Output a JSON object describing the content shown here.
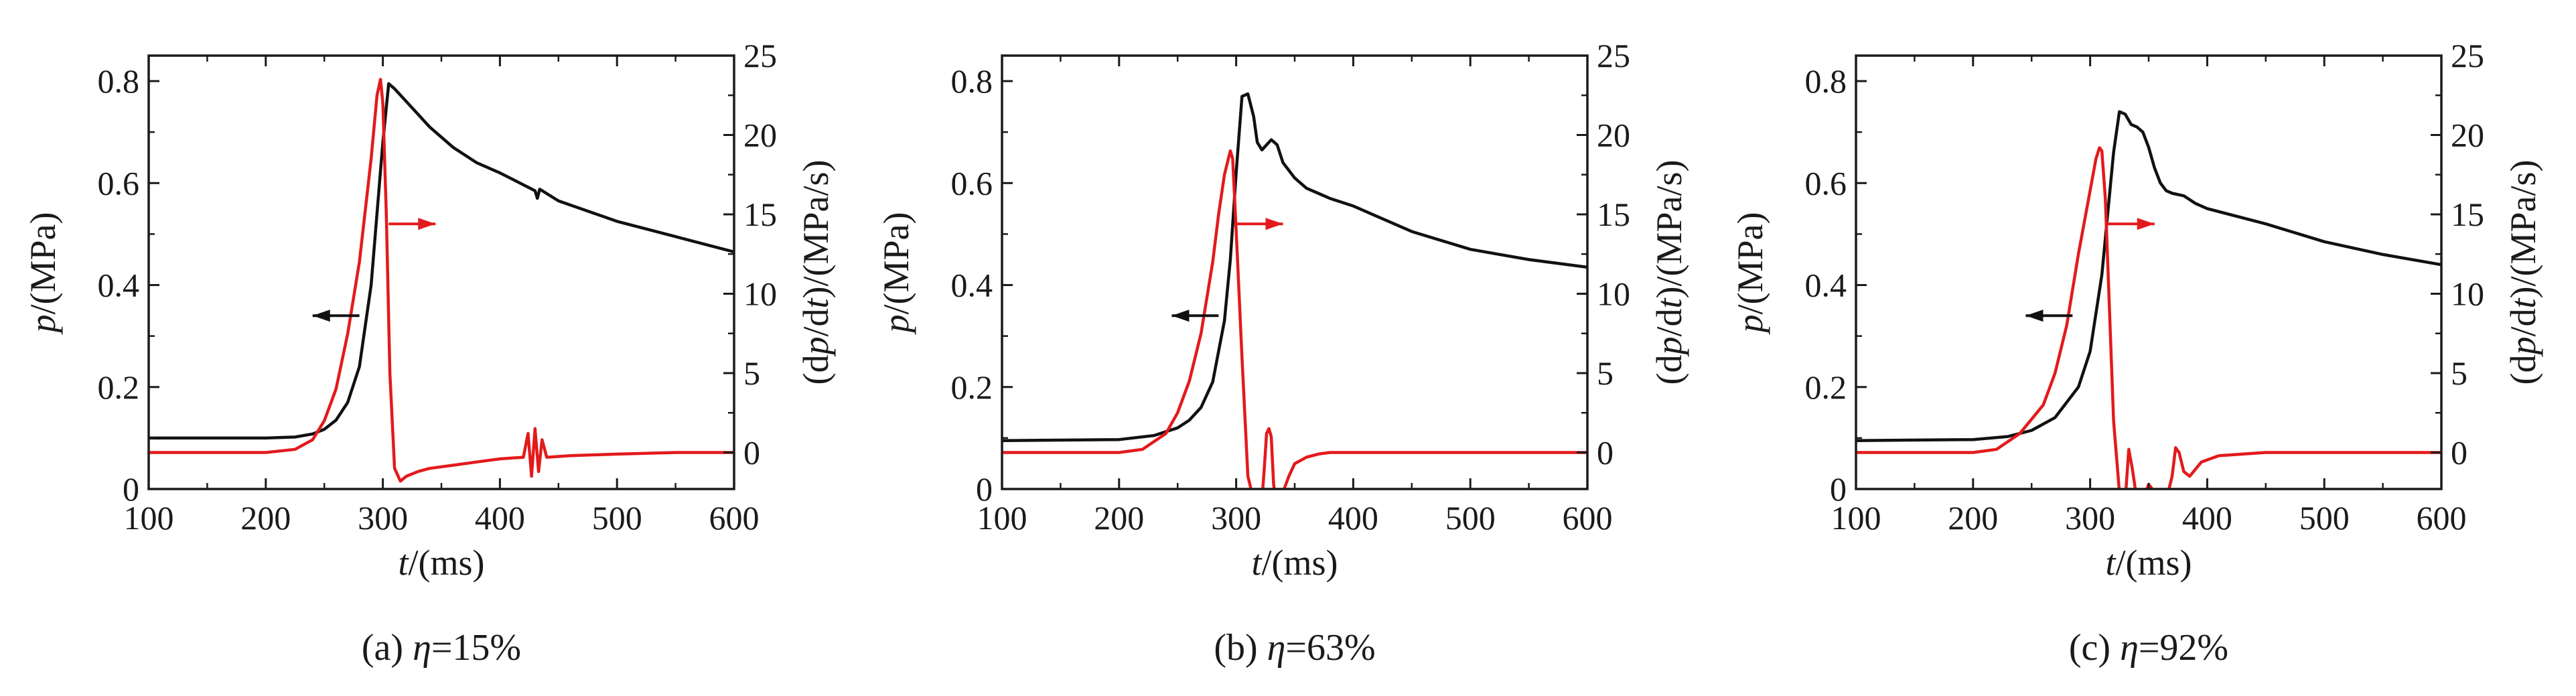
{
  "colors": {
    "pressure": "#111111",
    "rate": "#e31a1c",
    "axes": "#1a1a1a"
  },
  "chart_data": [
    {
      "type": "line",
      "caption": "(a) η=15%",
      "xlabel": "t/(ms)",
      "ylabel": "p/(MPa)",
      "ylabel_right": "(dp/dt)/(MPa/s)",
      "xlim": [
        100,
        600
      ],
      "ylim": [
        0,
        0.85
      ],
      "ylim_right": [
        -2.3,
        25
      ],
      "x_ticks": [
        100,
        200,
        300,
        400,
        500,
        600
      ],
      "y_ticks": [
        0,
        0.2,
        0.4,
        0.6,
        0.8
      ],
      "y_tick_labels": [
        "0",
        "0.2",
        "0.4",
        "0.6",
        "0.8"
      ],
      "y_ticks_right": [
        0,
        5,
        10,
        15,
        20,
        25
      ],
      "arrows": [
        {
          "series": "p",
          "points_to": "left",
          "x_start": 280,
          "x_end": 240,
          "y": 0.34
        },
        {
          "series": "dp/dt",
          "points_to": "right",
          "x_start": 305,
          "x_end": 345,
          "y": 0.52
        }
      ],
      "series": [
        {
          "axis": "left",
          "color": "#111111",
          "x": [
            100,
            200,
            225,
            240,
            250,
            260,
            270,
            280,
            290,
            300,
            305,
            310,
            320,
            340,
            360,
            380,
            400,
            430,
            432,
            434,
            450,
            500,
            550,
            600
          ],
          "y": [
            0.1,
            0.1,
            0.102,
            0.108,
            0.117,
            0.135,
            0.17,
            0.24,
            0.4,
            0.68,
            0.795,
            0.785,
            0.76,
            0.71,
            0.67,
            0.64,
            0.62,
            0.585,
            0.57,
            0.588,
            0.565,
            0.525,
            0.495,
            0.465
          ]
        },
        {
          "axis": "right",
          "color": "#e31a1c",
          "x": [
            100,
            200,
            225,
            240,
            250,
            260,
            270,
            280,
            290,
            295,
            298,
            300,
            303,
            306,
            310,
            315,
            320,
            330,
            340,
            360,
            380,
            400,
            420,
            424,
            427,
            430,
            433,
            436,
            440,
            460,
            500,
            550,
            600
          ],
          "y": [
            0,
            0,
            0.2,
            0.8,
            2,
            4,
            7.5,
            12,
            18.5,
            22.5,
            23.5,
            22,
            15,
            5,
            -1,
            -1.8,
            -1.5,
            -1.2,
            -1,
            -0.8,
            -0.6,
            -0.4,
            -0.3,
            1.2,
            -1.5,
            1.5,
            -1.2,
            0.8,
            -0.3,
            -0.2,
            -0.1,
            0,
            0
          ]
        }
      ]
    },
    {
      "type": "line",
      "caption": "(b) η=63%",
      "xlabel": "t/(ms)",
      "ylabel": "p/(MPa)",
      "ylabel_right": "(dp/dt)/(MPa/s)",
      "xlim": [
        100,
        600
      ],
      "ylim": [
        0,
        0.85
      ],
      "ylim_right": [
        -2.3,
        25
      ],
      "x_ticks": [
        100,
        200,
        300,
        400,
        500,
        600
      ],
      "y_ticks": [
        0,
        0.2,
        0.4,
        0.6,
        0.8
      ],
      "y_tick_labels": [
        "0",
        "0.2",
        "0.4",
        "0.6",
        "0.8"
      ],
      "y_ticks_right": [
        0,
        5,
        10,
        15,
        20,
        25
      ],
      "arrows": [
        {
          "series": "p",
          "points_to": "left",
          "x_start": 285,
          "x_end": 245,
          "y": 0.34
        },
        {
          "series": "dp/dt",
          "points_to": "right",
          "x_start": 300,
          "x_end": 340,
          "y": 0.52
        }
      ],
      "series": [
        {
          "axis": "left",
          "color": "#111111",
          "x": [
            100,
            200,
            230,
            250,
            260,
            270,
            280,
            290,
            295,
            300,
            305,
            310,
            315,
            318,
            322,
            330,
            335,
            340,
            350,
            360,
            370,
            380,
            400,
            420,
            450,
            500,
            550,
            600
          ],
          "y": [
            0.095,
            0.097,
            0.105,
            0.12,
            0.135,
            0.16,
            0.21,
            0.33,
            0.45,
            0.62,
            0.77,
            0.775,
            0.73,
            0.68,
            0.665,
            0.685,
            0.675,
            0.64,
            0.61,
            0.59,
            0.58,
            0.57,
            0.555,
            0.535,
            0.505,
            0.47,
            0.45,
            0.435
          ]
        },
        {
          "axis": "right",
          "color": "#e31a1c",
          "x": [
            100,
            200,
            220,
            240,
            250,
            260,
            270,
            280,
            285,
            290,
            295,
            297,
            300,
            305,
            310,
            315,
            322,
            324,
            326,
            328,
            330,
            332,
            334,
            337,
            340,
            345,
            350,
            360,
            370,
            380,
            400,
            450,
            500,
            550,
            600
          ],
          "y": [
            0,
            0,
            0.2,
            1.2,
            2.5,
            4.5,
            7.5,
            12,
            15,
            17.5,
            19,
            18.5,
            14,
            6,
            -1.5,
            -3,
            -3,
            -1,
            1.2,
            1.5,
            1,
            -2,
            -3,
            -3,
            -2.5,
            -1.5,
            -0.7,
            -0.3,
            -0.1,
            0,
            0,
            0,
            0,
            0,
            0
          ]
        }
      ]
    },
    {
      "type": "line",
      "caption": "(c) η=92%",
      "xlabel": "t/(ms)",
      "ylabel": "p/(MPa)",
      "ylabel_right": "(dp/dt)/(MPa/s)",
      "xlim": [
        100,
        600
      ],
      "ylim": [
        0,
        0.85
      ],
      "ylim_right": [
        -2.3,
        25
      ],
      "x_ticks": [
        100,
        200,
        300,
        400,
        500,
        600
      ],
      "y_ticks": [
        0,
        0.2,
        0.4,
        0.6,
        0.8
      ],
      "y_tick_labels": [
        "0",
        "0.2",
        "0.4",
        "0.6",
        "0.8"
      ],
      "y_ticks_right": [
        0,
        5,
        10,
        15,
        20,
        25
      ],
      "arrows": [
        {
          "series": "p",
          "points_to": "left",
          "x_start": 285,
          "x_end": 245,
          "y": 0.34
        },
        {
          "series": "dp/dt",
          "points_to": "right",
          "x_start": 315,
          "x_end": 355,
          "y": 0.52
        }
      ],
      "series": [
        {
          "axis": "left",
          "color": "#111111",
          "x": [
            100,
            200,
            230,
            250,
            270,
            290,
            300,
            310,
            320,
            325,
            330,
            335,
            340,
            345,
            350,
            355,
            360,
            365,
            370,
            380,
            390,
            400,
            450,
            500,
            550,
            600
          ],
          "y": [
            0.095,
            0.097,
            0.103,
            0.115,
            0.14,
            0.2,
            0.27,
            0.42,
            0.66,
            0.74,
            0.735,
            0.715,
            0.71,
            0.7,
            0.67,
            0.63,
            0.6,
            0.585,
            0.58,
            0.575,
            0.56,
            0.55,
            0.52,
            0.485,
            0.46,
            0.44
          ]
        },
        {
          "axis": "right",
          "color": "#e31a1c",
          "x": [
            100,
            200,
            220,
            240,
            260,
            270,
            280,
            290,
            300,
            305,
            308,
            310,
            313,
            316,
            320,
            325,
            330,
            333,
            336,
            340,
            345,
            350,
            360,
            365,
            370,
            373,
            376,
            380,
            385,
            395,
            410,
            450,
            500,
            550,
            600
          ],
          "y": [
            0,
            0,
            0.2,
            1.2,
            3,
            5,
            8,
            12.5,
            16.5,
            18.5,
            19.2,
            19,
            16,
            10,
            2,
            -2.5,
            -3,
            0.2,
            -1,
            -3,
            -3,
            -2,
            -3,
            -3,
            -1.5,
            0.3,
            0,
            -1.2,
            -1.5,
            -0.6,
            -0.2,
            0,
            0,
            0,
            0
          ]
        }
      ]
    }
  ]
}
